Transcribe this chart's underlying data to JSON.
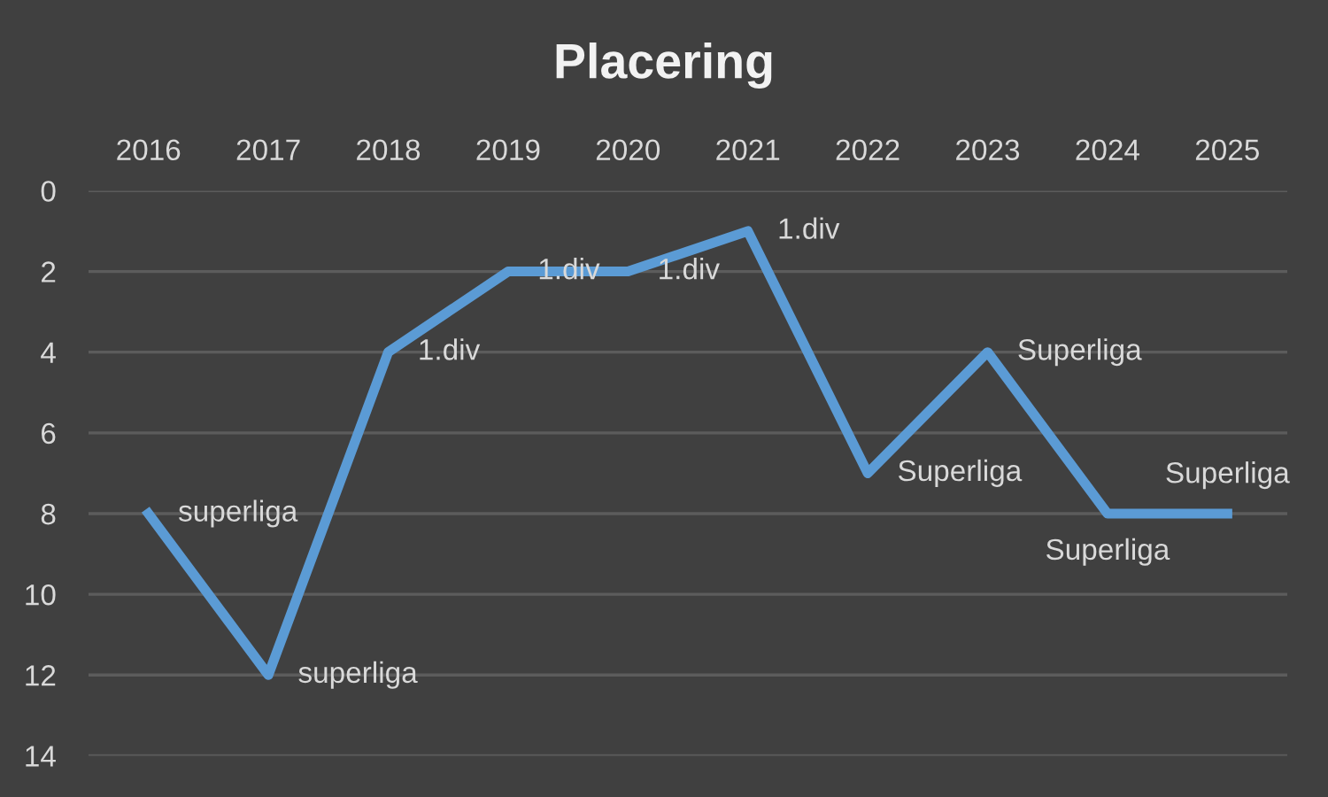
{
  "chart_data": {
    "type": "line",
    "title": "Placering",
    "categories": [
      "2016",
      "2017",
      "2018",
      "2019",
      "2020",
      "2021",
      "2022",
      "2023",
      "2024",
      "2025"
    ],
    "series": [
      {
        "color": "#5b9bd5",
        "values": [
          8,
          12,
          4,
          2,
          2,
          1,
          7,
          4,
          8,
          8
        ]
      }
    ],
    "annotations": [
      {
        "text": "superliga",
        "x": "2016",
        "y": 8
      },
      {
        "text": "superliga",
        "x": "2017",
        "y": 12
      },
      {
        "text": "1.div",
        "x": "2018",
        "y": 4
      },
      {
        "text": "1.div",
        "x": "2019",
        "y": 2
      },
      {
        "text": "1.div",
        "x": "2020",
        "y": 2
      },
      {
        "text": "1.div",
        "x": "2021",
        "y": 1
      },
      {
        "text": "Superliga",
        "x": "2022",
        "y": 7
      },
      {
        "text": "Superliga",
        "x": "2023",
        "y": 4
      },
      {
        "text": "Superliga",
        "x": "2024",
        "y": 8
      },
      {
        "text": "Superliga",
        "x": "2025",
        "y": 8
      }
    ],
    "ylim": [
      14,
      0
    ],
    "yticks": [
      0,
      2,
      4,
      6,
      8,
      10,
      12,
      14
    ],
    "grid": "y"
  }
}
